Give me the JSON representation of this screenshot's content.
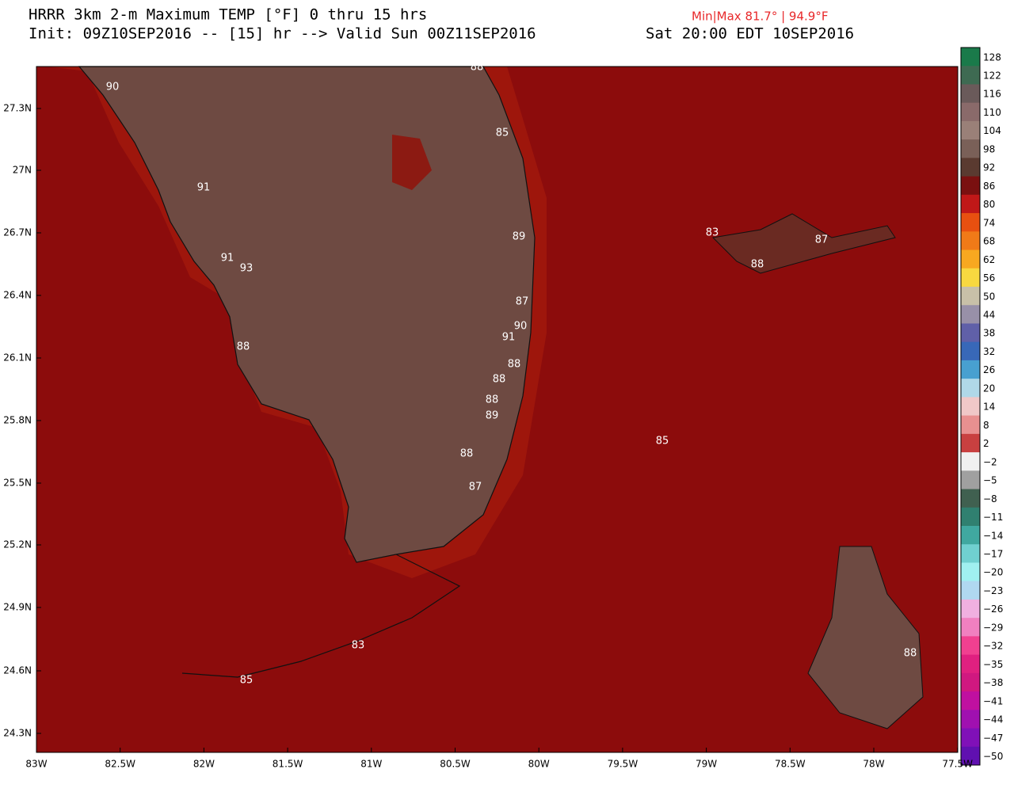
{
  "header": {
    "title": "HRRR 3km 2-m Maximum TEMP [°F] 0 thru 15 hrs",
    "init": "Init: 09Z10SEP2016 -- [15] hr --> Valid Sun 00Z11SEP2016",
    "local_time": "Sat 20:00 EDT 10SEP2016",
    "min_max": "Min|Max 81.7° | 94.9°F"
  },
  "map": {
    "lat_labels": [
      "27.3N",
      "27N",
      "26.7N",
      "26.4N",
      "26.1N",
      "25.8N",
      "25.5N",
      "25.2N",
      "24.9N",
      "24.6N",
      "24.3N"
    ],
    "lon_labels": [
      "83W",
      "82.5W",
      "82W",
      "81.5W",
      "81W",
      "80.5W",
      "80W",
      "79.5W",
      "79W",
      "78.5W",
      "78W",
      "77.5W"
    ],
    "station_values": [
      "88",
      "90",
      "85",
      "91",
      "89",
      "91",
      "93",
      "87",
      "90",
      "91",
      "88",
      "88",
      "88",
      "88",
      "89",
      "88",
      "87",
      "85",
      "83",
      "87",
      "88",
      "83",
      "85",
      "88"
    ]
  },
  "colorbar": {
    "labels": [
      "128",
      "122",
      "116",
      "110",
      "104",
      "98",
      "92",
      "86",
      "80",
      "74",
      "68",
      "62",
      "56",
      "50",
      "44",
      "38",
      "32",
      "26",
      "20",
      "14",
      "8",
      "2",
      "−2",
      "−5",
      "−8",
      "−11",
      "−14",
      "−17",
      "−20",
      "−23",
      "−26",
      "−29",
      "−32",
      "−35",
      "−38",
      "−41",
      "−44",
      "−47",
      "−50"
    ]
  }
}
